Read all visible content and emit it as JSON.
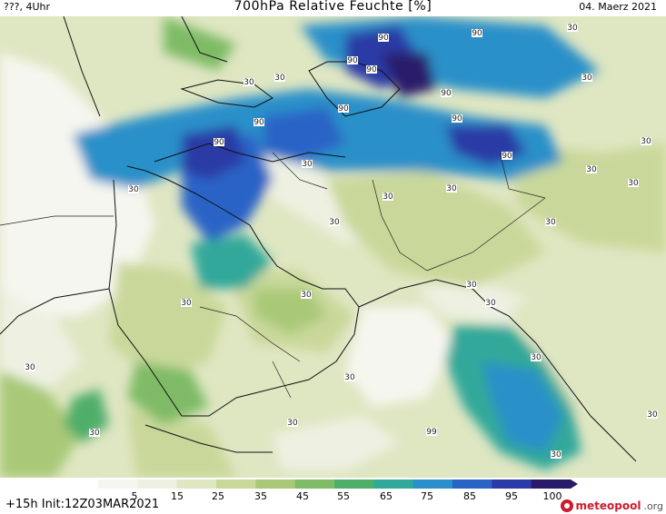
{
  "header": {
    "left": "???, 4Uhr",
    "title": "700hPa Relative Feuchte [%]",
    "date": "04. Maerz 2021"
  },
  "footer": {
    "run_info": "+15h Init:12Z03MAR2021",
    "brand_name": "meteopool",
    "brand_tld": ".org"
  },
  "colorbar": {
    "ticks": [
      "5",
      "15",
      "25",
      "35",
      "45",
      "55",
      "65",
      "75",
      "85",
      "95",
      "100"
    ],
    "colors": [
      "#f6f6f0",
      "#eef1e2",
      "#dfe6c2",
      "#c9d89a",
      "#a9c978",
      "#7fbb66",
      "#4fae6a",
      "#30a89a",
      "#2b90c9",
      "#2a63c6",
      "#2b3aa6",
      "#2a1a6a"
    ]
  },
  "contour_labels": [
    {
      "text": "30"
    },
    {
      "text": "90"
    },
    {
      "text": "90"
    },
    {
      "text": "90"
    },
    {
      "text": "90"
    },
    {
      "text": "90"
    },
    {
      "text": "30"
    },
    {
      "text": "30"
    },
    {
      "text": "30"
    },
    {
      "text": "30"
    },
    {
      "text": "30"
    },
    {
      "text": "30"
    },
    {
      "text": "30"
    },
    {
      "text": "30"
    },
    {
      "text": "30"
    },
    {
      "text": "30"
    },
    {
      "text": "30"
    },
    {
      "text": "30"
    },
    {
      "text": "30"
    },
    {
      "text": "30"
    },
    {
      "text": "30"
    },
    {
      "text": "30"
    },
    {
      "text": "30"
    },
    {
      "text": "30"
    },
    {
      "text": "30"
    },
    {
      "text": "30"
    },
    {
      "text": "30"
    },
    {
      "text": "99"
    },
    {
      "text": "90"
    },
    {
      "text": "90"
    },
    {
      "text": "90"
    },
    {
      "text": "90"
    },
    {
      "text": "90"
    },
    {
      "text": "30"
    },
    {
      "text": "30"
    },
    {
      "text": "30"
    }
  ]
}
